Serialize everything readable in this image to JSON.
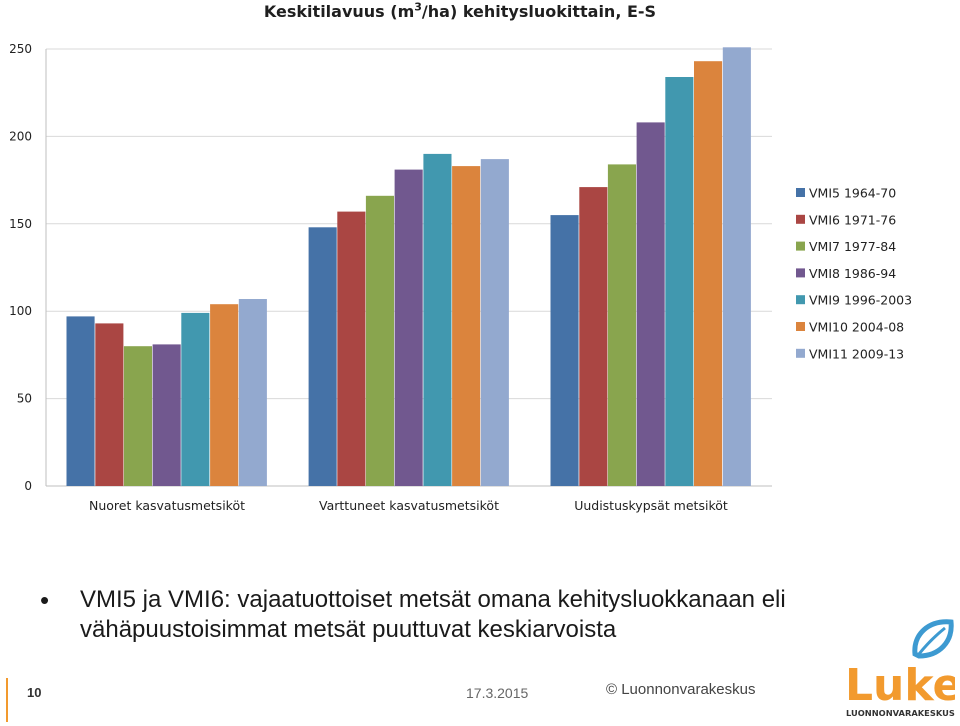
{
  "slide": {
    "title_prefix": "Keskitilavuus (m",
    "title_sup": "3",
    "title_suffix": "/ha) kehitysluokittain, E-S",
    "bullet": "•",
    "bullet_text": "VMI5 ja VMI6: vajaatuottoiset metsät omana kehitysluokkanaan eli vähäpuustoisimmat metsät puuttuvat keskiarvoista",
    "page_number": "10",
    "date": "17.3.2015",
    "copyright": "© Luonnonvarakeskus",
    "logo_word": "Luke",
    "logo_subtext": "LUONNONVARAKESKUS"
  },
  "chart_data": {
    "type": "bar",
    "title": "Keskitilavuus (m3/ha) kehitysluokittain, E-S",
    "categories": [
      "Nuoret kasvatusmetsiköt",
      "Varttuneet kasvatusmetsiköt",
      "Uudistuskypsät metsiköt"
    ],
    "ylim": [
      0,
      250
    ],
    "yticks": [
      0,
      50,
      100,
      150,
      200,
      250
    ],
    "grid": true,
    "legend_position": "right",
    "series": [
      {
        "name": "VMI5 1964-70",
        "color": "#4572a7",
        "values": [
          97,
          148,
          155
        ]
      },
      {
        "name": "VMI6 1971-76",
        "color": "#aa4643",
        "values": [
          93,
          157,
          171
        ]
      },
      {
        "name": "VMI7 1977-84",
        "color": "#89a54e",
        "values": [
          80,
          166,
          184
        ]
      },
      {
        "name": "VMI8 1986-94",
        "color": "#71588f",
        "values": [
          81,
          181,
          208
        ]
      },
      {
        "name": "VMI9 1996-2003",
        "color": "#4198af",
        "values": [
          99,
          190,
          234
        ]
      },
      {
        "name": "VMI10 2004-08",
        "color": "#db843d",
        "values": [
          104,
          183,
          243
        ]
      },
      {
        "name": "VMI11 2009-13",
        "color": "#93a9cf",
        "values": [
          107,
          187,
          251
        ]
      }
    ]
  }
}
